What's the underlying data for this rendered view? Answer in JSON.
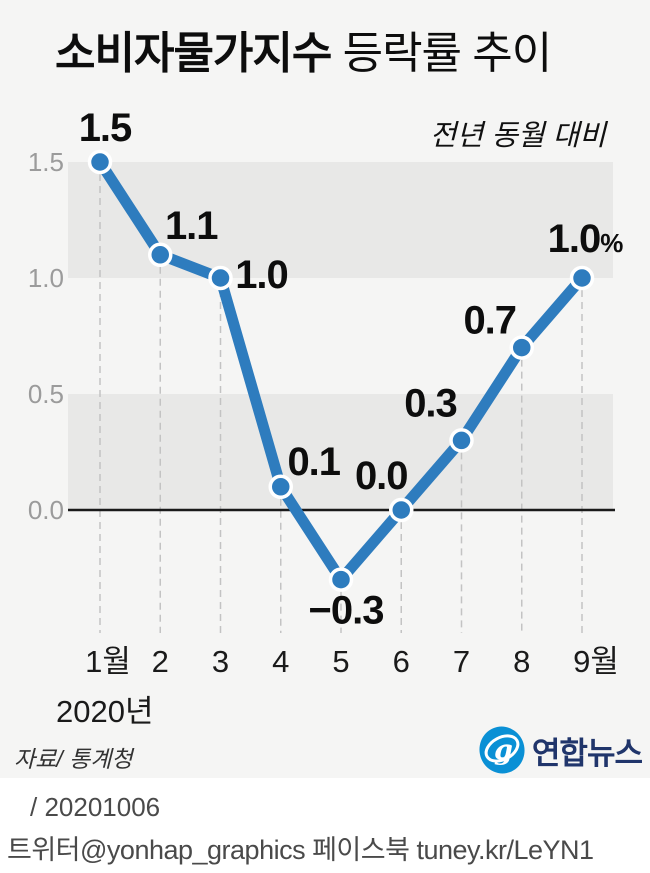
{
  "title": {
    "emphasis": "소비자물가지수",
    "rest": " 등락률 추이"
  },
  "subtitle": "전년 동월 대비",
  "source": "자료/ 통계청",
  "logo": {
    "icon": "yonhap-swirl-icon",
    "name": "연합뉴스"
  },
  "footer": {
    "date": "/ 20201006",
    "credits": "트위터@yonhap_graphics  페이스북 tuney.kr/LeYN1"
  },
  "chart_data": {
    "type": "line",
    "title": "소비자물가지수 등락률 추이",
    "subtitle": "전년 동월 대비",
    "x": [
      "1월",
      "2",
      "3",
      "4",
      "5",
      "6",
      "7",
      "8",
      "9월"
    ],
    "x_axis_note": "2020년",
    "series": [
      {
        "name": "소비자물가지수 등락률(전년 동월 대비, %)",
        "values": [
          1.5,
          1.1,
          1.0,
          0.1,
          -0.3,
          0.0,
          0.3,
          0.7,
          1.0
        ]
      }
    ],
    "point_labels": [
      "1.5",
      "1.1",
      "1.0",
      "0.1",
      "−0.3",
      "0.0",
      "0.3",
      "0.7",
      "1.0"
    ],
    "unit_suffix_last": "%",
    "yticks": [
      1.5,
      1.0,
      0.5,
      0.0
    ],
    "ytick_labels": [
      "1.5",
      "1.0",
      "0.5",
      "0.0"
    ],
    "ylim": [
      -0.53,
      1.5
    ],
    "bands": [
      [
        1.0,
        1.5
      ],
      [
        0.0,
        0.5
      ]
    ],
    "zero_line": 0.0,
    "grid": "dashed-vertical-per-point",
    "legend_position": "none",
    "colors": {
      "line": "#2E7CBE",
      "marker_stroke": "#FFFFFF",
      "band": "#E8E8E7",
      "background": "#F5F5F4",
      "tick_label": "#9B9B9B",
      "axis": "#1A1A1A",
      "dashed_grid": "#C3C3C3",
      "logo_blue": "#0A90D5",
      "logo_navy": "#20356B"
    }
  }
}
